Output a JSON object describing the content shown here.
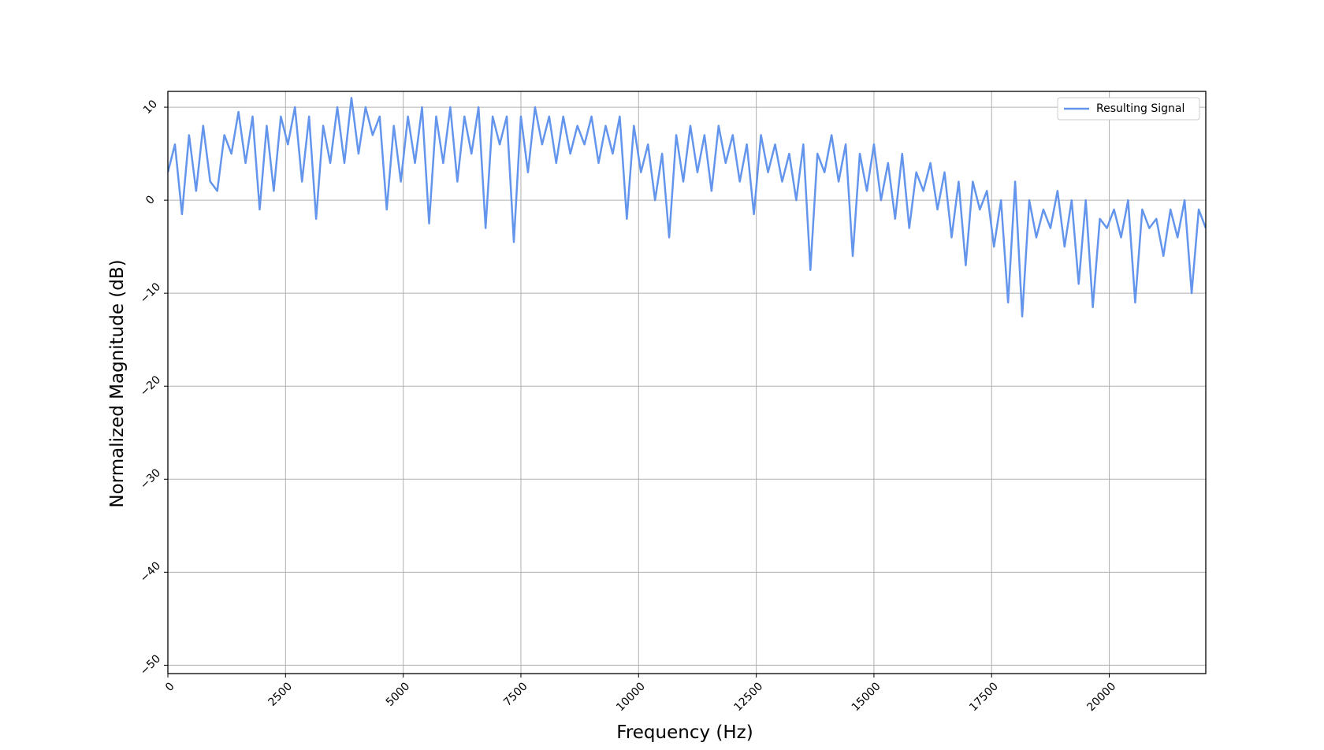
{
  "chart_data": {
    "type": "line",
    "xlabel": "Frequency (Hz)",
    "ylabel": "Normalized Magnitude (dB)",
    "x": [
      0,
      150,
      300,
      450,
      600,
      750,
      900,
      1050,
      1200,
      1350,
      1500,
      1650,
      1800,
      1950,
      2100,
      2250,
      2400,
      2550,
      2700,
      2850,
      3000,
      3150,
      3300,
      3450,
      3600,
      3750,
      3900,
      4050,
      4200,
      4350,
      4500,
      4650,
      4800,
      4950,
      5100,
      5250,
      5400,
      5550,
      5700,
      5850,
      6000,
      6150,
      6300,
      6450,
      6600,
      6750,
      6900,
      7050,
      7200,
      7350,
      7500,
      7650,
      7800,
      7950,
      8100,
      8250,
      8400,
      8550,
      8700,
      8850,
      9000,
      9150,
      9300,
      9450,
      9600,
      9750,
      9900,
      10050,
      10200,
      10350,
      10500,
      10650,
      10800,
      10950,
      11100,
      11250,
      11400,
      11550,
      11700,
      11850,
      12000,
      12150,
      12300,
      12450,
      12600,
      12750,
      12900,
      13050,
      13200,
      13350,
      13500,
      13650,
      13800,
      13950,
      14100,
      14250,
      14400,
      14550,
      14700,
      14850,
      15000,
      15150,
      15300,
      15450,
      15600,
      15750,
      15900,
      16050,
      16200,
      16350,
      16500,
      16650,
      16800,
      16950,
      17100,
      17250,
      17400,
      17550,
      17700,
      17850,
      18000,
      18150,
      18300,
      18450,
      18600,
      18750,
      18900,
      19050,
      19200,
      19350,
      19500,
      19650,
      19800,
      19950,
      20100,
      20250,
      20400,
      20550,
      20700,
      20850,
      21000,
      21150,
      21300,
      21450,
      21600,
      21750,
      21900,
      22050
    ],
    "series": [
      {
        "name": "Resulting Signal",
        "color": "#6495ed",
        "values": [
          3,
          6,
          -1.5,
          7,
          1,
          8,
          2,
          1,
          7,
          5,
          9.5,
          4,
          9,
          -1,
          8,
          1,
          9,
          6,
          10,
          2,
          9,
          -2,
          8,
          4,
          10,
          4,
          11,
          5,
          10,
          7,
          9,
          -1,
          8,
          2,
          9,
          4,
          10,
          -2.5,
          9,
          4,
          10,
          2,
          9,
          5,
          10,
          -3,
          9,
          6,
          9,
          -4.5,
          9,
          3,
          10,
          6,
          9,
          4,
          9,
          5,
          8,
          6,
          9,
          4,
          8,
          5,
          9,
          -2,
          8,
          3,
          6,
          0,
          5,
          -4,
          7,
          2,
          8,
          3,
          7,
          1,
          8,
          4,
          7,
          2,
          6,
          -1.5,
          7,
          3,
          6,
          2,
          5,
          0,
          6,
          -7.5,
          5,
          3,
          7,
          2,
          6,
          -6,
          5,
          1,
          6,
          0,
          4,
          -2,
          5,
          -3,
          3,
          1,
          4,
          -1,
          3,
          -4,
          2,
          -7,
          2,
          -1,
          1,
          -5,
          0,
          -11,
          2,
          -12.5,
          0,
          -4,
          -1,
          -3,
          1,
          -5,
          0,
          -9,
          0,
          -11.5,
          -2,
          -3,
          -1,
          -4,
          0,
          -11,
          -1,
          -3,
          -2,
          -6,
          -1,
          -4,
          0,
          -10,
          -1,
          -3
        ]
      }
    ],
    "xlim": [
      0,
      22050
    ],
    "ylim": [
      -50.9,
      11.7
    ],
    "xticks": [
      0,
      2500,
      5000,
      7500,
      10000,
      12500,
      15000,
      17500,
      20000
    ],
    "yticks": [
      {
        "value": -50,
        "label": "−50"
      },
      {
        "value": -40,
        "label": "−40"
      },
      {
        "value": -30,
        "label": "−30"
      },
      {
        "value": -20,
        "label": "−20"
      },
      {
        "value": -10,
        "label": "−10"
      },
      0,
      10
    ],
    "grid": true,
    "legend": "upper right"
  }
}
